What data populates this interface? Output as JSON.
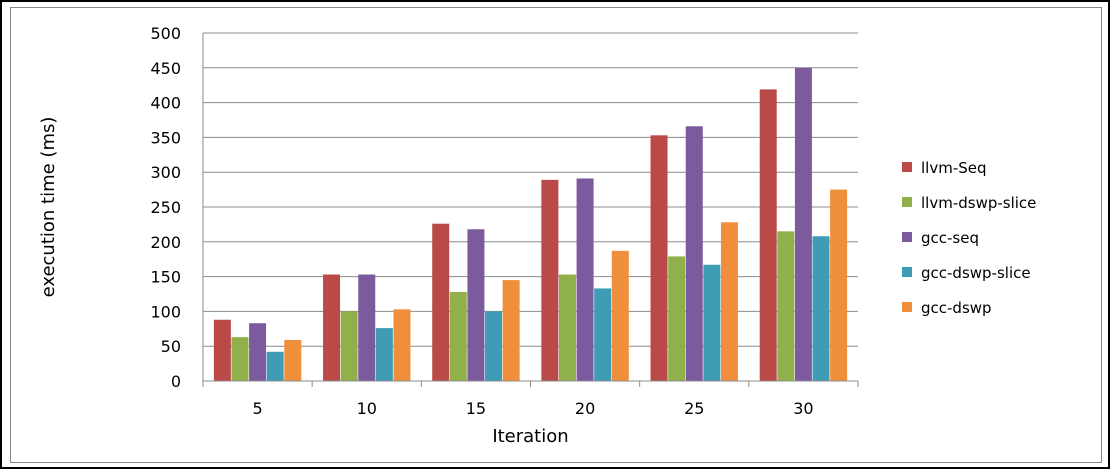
{
  "chart_data": {
    "type": "bar",
    "title": "",
    "xlabel": "Iteration",
    "ylabel": "execution time (ms)",
    "categories": [
      "5",
      "10",
      "15",
      "20",
      "25",
      "30"
    ],
    "ylim": [
      0,
      500
    ],
    "yticks": [
      "0",
      "50",
      "100",
      "150",
      "200",
      "250",
      "300",
      "350",
      "400",
      "450",
      "500"
    ],
    "grid": "horizontal",
    "legend_position": "right",
    "series": [
      {
        "name": "llvm-Seq",
        "color": "#b94a48",
        "values": [
          88,
          153,
          226,
          289,
          353,
          419
        ]
      },
      {
        "name": "llvm-dswp-slice",
        "color": "#8fb04a",
        "values": [
          63,
          100,
          128,
          153,
          179,
          215
        ]
      },
      {
        "name": "gcc-seq",
        "color": "#7b5a9e",
        "values": [
          83,
          153,
          218,
          291,
          366,
          450
        ]
      },
      {
        "name": "gcc-dswp-slice",
        "color": "#3e9db5",
        "values": [
          42,
          76,
          100,
          133,
          167,
          208
        ]
      },
      {
        "name": "gcc-dswp",
        "color": "#ef8f3b",
        "values": [
          59,
          103,
          145,
          187,
          228,
          275
        ]
      }
    ]
  }
}
